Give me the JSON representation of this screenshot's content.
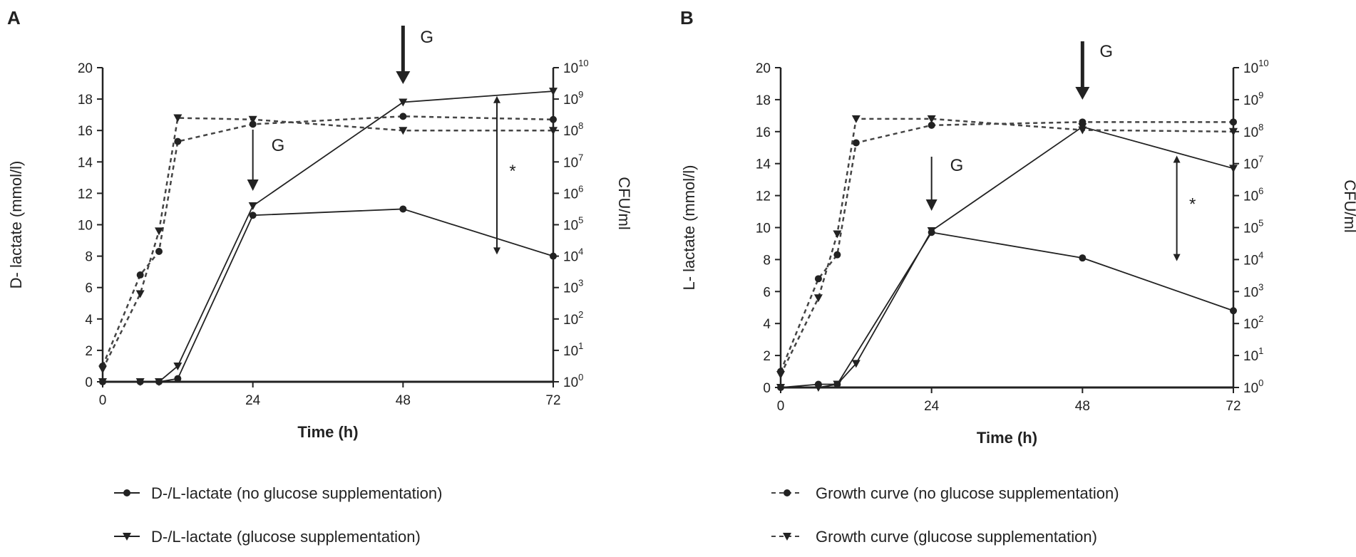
{
  "chart_data": [
    {
      "type": "line",
      "panel_label": "A",
      "xlabel": "Time (h)",
      "ylabel_left": "D- lactate (mmol/l)",
      "ylabel_right": "CFU/ml",
      "x_ticks": [
        "0",
        "24",
        "48",
        "72"
      ],
      "y_ticks": [
        "0",
        "2",
        "4",
        "6",
        "8",
        "10",
        "12",
        "14",
        "16",
        "18",
        "20"
      ],
      "y_right_tick_base": "10",
      "y_right_tick_exponents": [
        "0",
        "1",
        "2",
        "3",
        "4",
        "5",
        "6",
        "7",
        "8",
        "9",
        "10"
      ],
      "xlim": [
        0,
        72
      ],
      "ylim": [
        0,
        20
      ],
      "series": [
        {
          "name": "D-/L-lactate (no glucose supplementation)",
          "style": "solid",
          "marker": "circle",
          "x": [
            0,
            6,
            9,
            12,
            24,
            48,
            72
          ],
          "y": [
            0,
            0,
            0,
            0.2,
            10.6,
            11.0,
            8.0
          ]
        },
        {
          "name": "D-/L-lactate (glucose supplementation)",
          "style": "solid",
          "marker": "triangle",
          "x": [
            0,
            6,
            9,
            12,
            24,
            48,
            72
          ],
          "y": [
            0,
            0,
            0,
            1.0,
            11.2,
            17.8,
            18.5
          ]
        },
        {
          "name": "Growth curve (no glucose supplementation)",
          "style": "dashed",
          "marker": "circle",
          "x": [
            0,
            6,
            9,
            12,
            24,
            48,
            72
          ],
          "y": [
            1.0,
            6.8,
            8.3,
            15.3,
            16.4,
            16.9,
            16.7
          ]
        },
        {
          "name": "Growth curve (glucose supplementation)",
          "style": "dashed",
          "marker": "triangle",
          "x": [
            0,
            6,
            9,
            12,
            24,
            48,
            72
          ],
          "y": [
            0.8,
            5.6,
            9.6,
            16.8,
            16.7,
            16.0,
            16.0
          ]
        }
      ],
      "annotations": [
        {
          "text": "G",
          "x": 24,
          "arrow": "thin"
        },
        {
          "text": "G",
          "x": 48,
          "arrow": "bold"
        },
        {
          "text": "*",
          "x": 63
        }
      ]
    },
    {
      "type": "line",
      "panel_label": "B",
      "xlabel": "Time (h)",
      "ylabel_left": "L- lactate (mmol/l)",
      "ylabel_right": "CFU/ml",
      "x_ticks": [
        "0",
        "24",
        "48",
        "72"
      ],
      "y_ticks": [
        "0",
        "2",
        "4",
        "6",
        "8",
        "10",
        "12",
        "14",
        "16",
        "18",
        "20"
      ],
      "y_right_tick_base": "10",
      "y_right_tick_exponents": [
        "0",
        "1",
        "2",
        "3",
        "4",
        "5",
        "6",
        "7",
        "8",
        "9",
        "10"
      ],
      "xlim": [
        0,
        72
      ],
      "ylim": [
        0,
        20
      ],
      "series": [
        {
          "name": "D-/L-lactate (no glucose supplementation)",
          "style": "solid",
          "marker": "circle",
          "x": [
            0,
            6,
            9,
            24,
            48,
            72
          ],
          "y": [
            0,
            0.2,
            0.2,
            9.7,
            8.1,
            4.8
          ]
        },
        {
          "name": "D-/L-lactate (glucose supplementation)",
          "style": "solid",
          "marker": "triangle",
          "x": [
            0,
            6,
            9,
            12,
            24,
            48,
            72
          ],
          "y": [
            0,
            0,
            0.2,
            1.5,
            9.8,
            16.3,
            13.7
          ]
        },
        {
          "name": "Growth curve (no glucose supplementation)",
          "style": "dashed",
          "marker": "circle",
          "x": [
            0,
            6,
            9,
            12,
            24,
            48,
            72
          ],
          "y": [
            1.0,
            6.8,
            8.3,
            15.3,
            16.4,
            16.6,
            16.6
          ]
        },
        {
          "name": "Growth curve (glucose supplementation)",
          "style": "dashed",
          "marker": "triangle",
          "x": [
            0,
            6,
            9,
            12,
            24,
            48,
            72
          ],
          "y": [
            0.8,
            5.6,
            9.6,
            16.8,
            16.8,
            16.1,
            16.0
          ]
        }
      ],
      "annotations": [
        {
          "text": "G",
          "x": 24,
          "arrow": "thin"
        },
        {
          "text": "G",
          "x": 48,
          "arrow": "bold"
        },
        {
          "text": "*",
          "x": 63
        }
      ]
    }
  ],
  "legend": [
    {
      "label": "D-/L-lactate (no glucose supplementation)",
      "style": "solid",
      "marker": "circle"
    },
    {
      "label": "D-/L-lactate (glucose supplementation)",
      "style": "solid",
      "marker": "triangle"
    },
    {
      "label": "Growth curve (no glucose supplementation)",
      "style": "dashed",
      "marker": "circle"
    },
    {
      "label": "Growth curve (glucose supplementation)",
      "style": "dashed",
      "marker": "triangle"
    }
  ],
  "colors": {
    "ink": "#222222",
    "dashed": "#444444",
    "background": "#ffffff"
  }
}
